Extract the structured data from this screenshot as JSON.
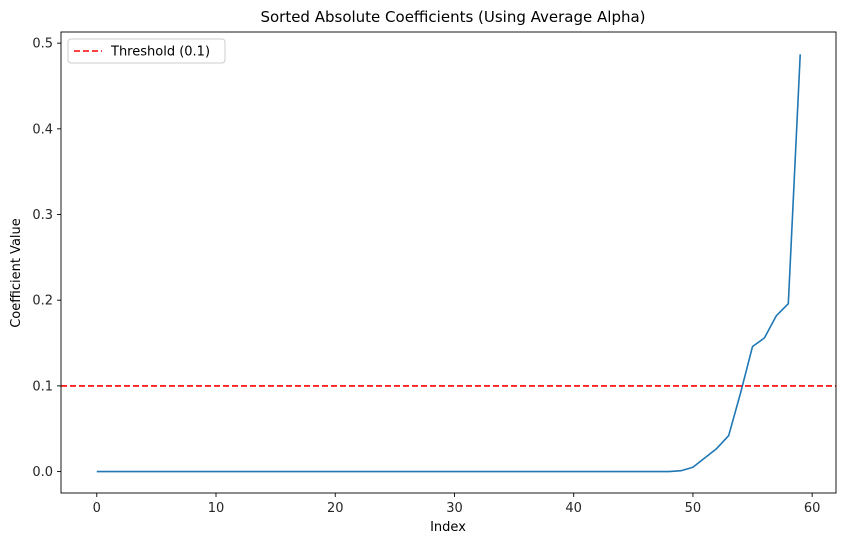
{
  "chart_data": {
    "type": "line",
    "title": "Sorted Absolute Coefficients (Using Average Alpha)",
    "xlabel": "Index",
    "ylabel": "Coefficient Value",
    "xlim": [
      -3,
      62
    ],
    "ylim": [
      -0.025,
      0.513
    ],
    "xticks": [
      0,
      10,
      20,
      30,
      40,
      50,
      60
    ],
    "yticks": [
      0.0,
      0.1,
      0.2,
      0.3,
      0.4,
      0.5
    ],
    "xtick_labels": [
      "0",
      "10",
      "20",
      "30",
      "40",
      "50",
      "60"
    ],
    "ytick_labels": [
      "0.0",
      "0.1",
      "0.2",
      "0.3",
      "0.4",
      "0.5"
    ],
    "grid": false,
    "legend": {
      "location": "top-left",
      "entries": [
        "Threshold (0.1)"
      ]
    },
    "series": [
      {
        "color": "#1f77b4",
        "x": [
          0,
          1,
          2,
          3,
          4,
          5,
          6,
          7,
          8,
          9,
          10,
          11,
          12,
          13,
          14,
          15,
          16,
          17,
          18,
          19,
          20,
          21,
          22,
          23,
          24,
          25,
          26,
          27,
          28,
          29,
          30,
          31,
          32,
          33,
          34,
          35,
          36,
          37,
          38,
          39,
          40,
          41,
          42,
          43,
          44,
          45,
          46,
          47,
          48,
          49,
          50,
          51,
          52,
          53,
          54,
          55,
          56,
          57,
          58,
          59
        ],
        "values": [
          0,
          0,
          0,
          0,
          0,
          0,
          0,
          0,
          0,
          0,
          0,
          0,
          0,
          0,
          0,
          0,
          0,
          0,
          0,
          0,
          0,
          0,
          0,
          0,
          0,
          0,
          0,
          0,
          0,
          0,
          0,
          0,
          0,
          0,
          0,
          0,
          0,
          0,
          0,
          0,
          0,
          0,
          0,
          0,
          0,
          0,
          0,
          0,
          0,
          0.001,
          0.005,
          0.016,
          0.027,
          0.042,
          0.092,
          0.146,
          0.156,
          0.182,
          0.196,
          0.487
        ]
      }
    ],
    "hlines": [
      {
        "name": "Threshold (0.1)",
        "y": 0.1,
        "color": "#ff0000",
        "style": "dashed"
      }
    ]
  }
}
